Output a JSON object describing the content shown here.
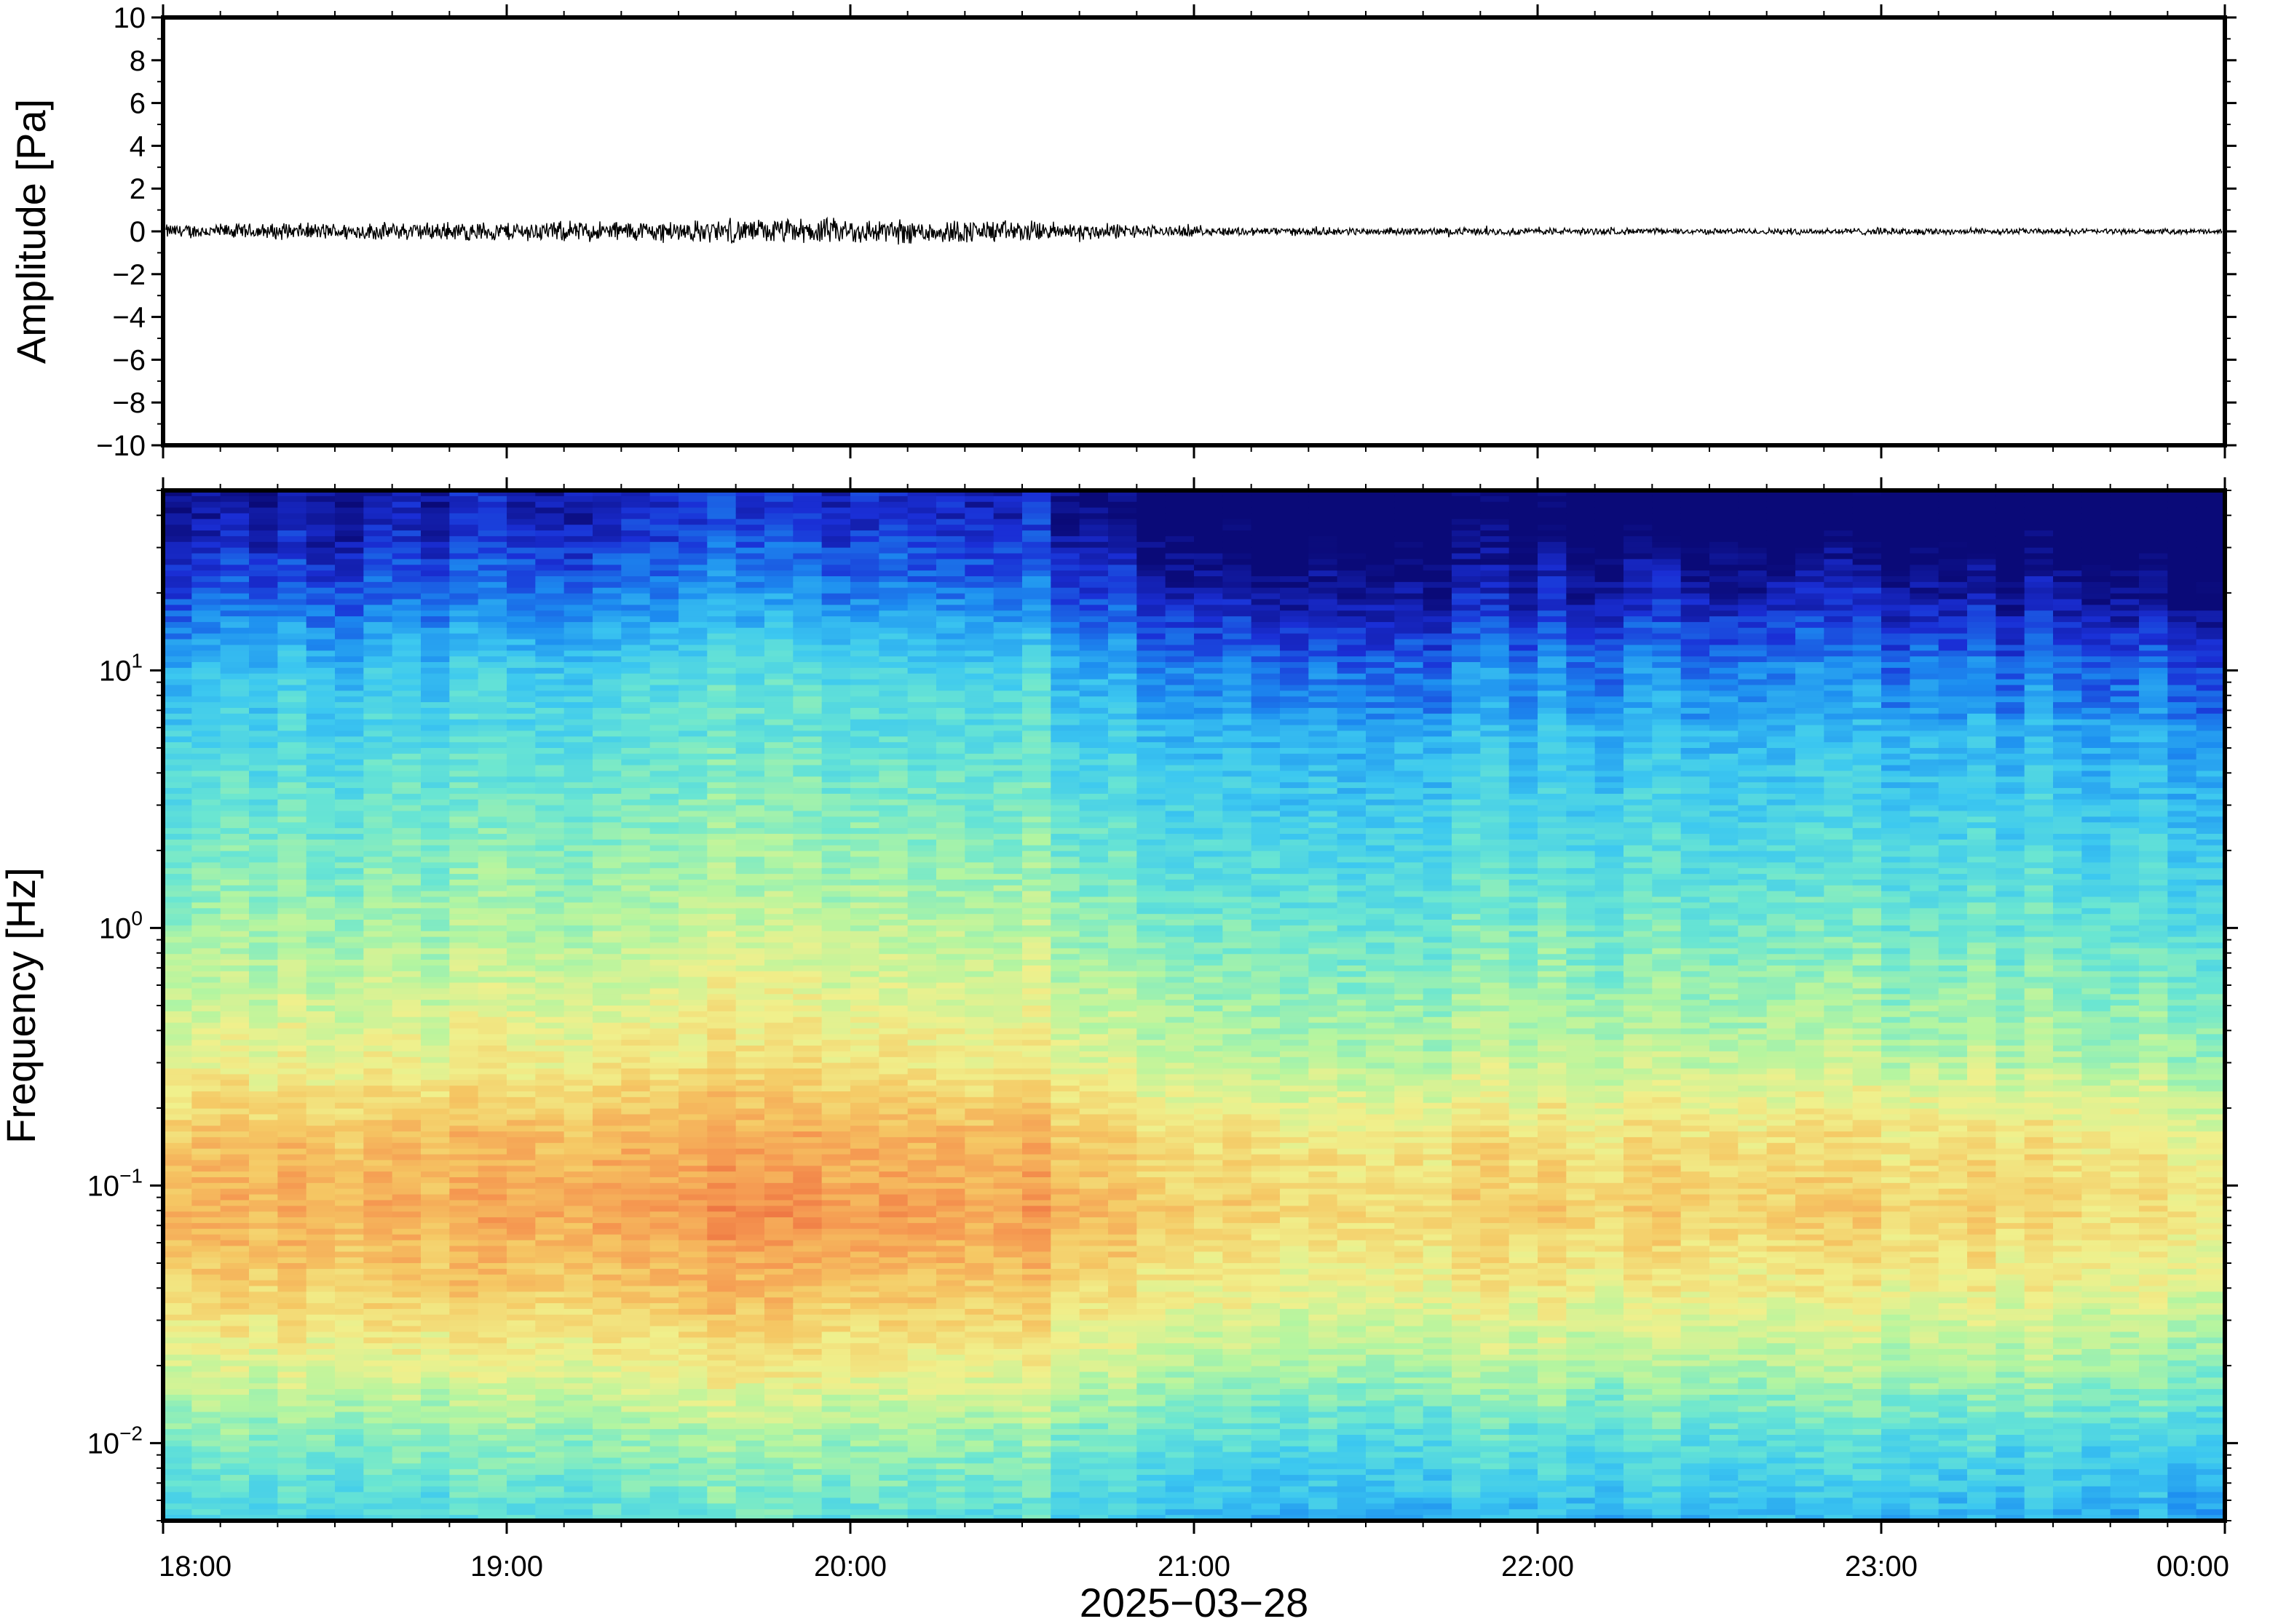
{
  "chart_data": [
    {
      "type": "line",
      "panel": "waveform",
      "ylabel": "Amplitude [Pa]",
      "ylim": [
        -10,
        10
      ],
      "yticks": [
        10,
        8,
        6,
        4,
        2,
        0,
        -2,
        -4,
        -6,
        -8,
        -10
      ],
      "ytick_labels": [
        "10",
        "8",
        "6",
        "4",
        "2",
        "0",
        "−2",
        "−4",
        "−6",
        "−8",
        "−10"
      ],
      "xlim": [
        "2025-03-28T18:00",
        "2025-03-29T00:00"
      ],
      "grid": false,
      "series": [
        {
          "x_hours": [
            18.0,
            18.5,
            19.0,
            19.5,
            20.0,
            20.5,
            21.0,
            21.5,
            22.0,
            22.5,
            23.0,
            23.5,
            24.0
          ],
          "envelope_pa": [
            0.3,
            0.35,
            0.4,
            0.45,
            0.55,
            0.45,
            0.2,
            0.15,
            0.15,
            0.12,
            0.15,
            0.12,
            0.1
          ],
          "peak_pa": 1.0,
          "color": "#000000"
        }
      ]
    },
    {
      "type": "heatmap",
      "panel": "spectrogram",
      "ylabel": "Frequency [Hz]",
      "yscale": "log",
      "ylim": [
        0.005,
        50
      ],
      "yticks": [
        0.01,
        0.1,
        1,
        10
      ],
      "ytick_labels": [
        {
          "base": "10",
          "exp": "−2"
        },
        {
          "base": "10",
          "exp": "−1"
        },
        {
          "base": "10",
          "exp": "0"
        },
        {
          "base": "10",
          "exp": "1"
        }
      ],
      "xlabel": "2025−03−28",
      "xticks": [
        "18:00",
        "19:00",
        "20:00",
        "21:00",
        "22:00",
        "23:00",
        "00:00"
      ],
      "xlim": [
        "2025-03-28T18:00",
        "2025-03-29T00:00"
      ],
      "colormap": [
        "#0a0a78",
        "#1a2fd6",
        "#1c8cf0",
        "#3cc8f0",
        "#6ae6d2",
        "#b4f5a0",
        "#f0f08c",
        "#f5c864",
        "#f59650",
        "#e85a37"
      ],
      "power_profile_by_log10_freq": {
        "log10_freq": [
          -2.3,
          -2.0,
          -1.7,
          -1.4,
          -1.1,
          -0.8,
          -0.5,
          -0.2,
          0.1,
          0.4,
          0.7,
          1.0,
          1.3,
          1.6
        ],
        "level_0_to_1": [
          0.35,
          0.45,
          0.6,
          0.72,
          0.8,
          0.75,
          0.62,
          0.55,
          0.48,
          0.42,
          0.36,
          0.28,
          0.12,
          0.0
        ]
      },
      "time_activity_by_hour": {
        "x_hours": [
          18.0,
          18.5,
          19.0,
          19.5,
          20.0,
          20.5,
          21.0,
          21.5,
          22.0,
          22.5,
          23.0,
          23.5,
          24.0
        ],
        "level_shift": [
          0.02,
          0.03,
          0.05,
          0.08,
          0.09,
          0.06,
          -0.03,
          -0.05,
          -0.04,
          -0.05,
          -0.04,
          -0.06,
          -0.08
        ]
      }
    }
  ]
}
